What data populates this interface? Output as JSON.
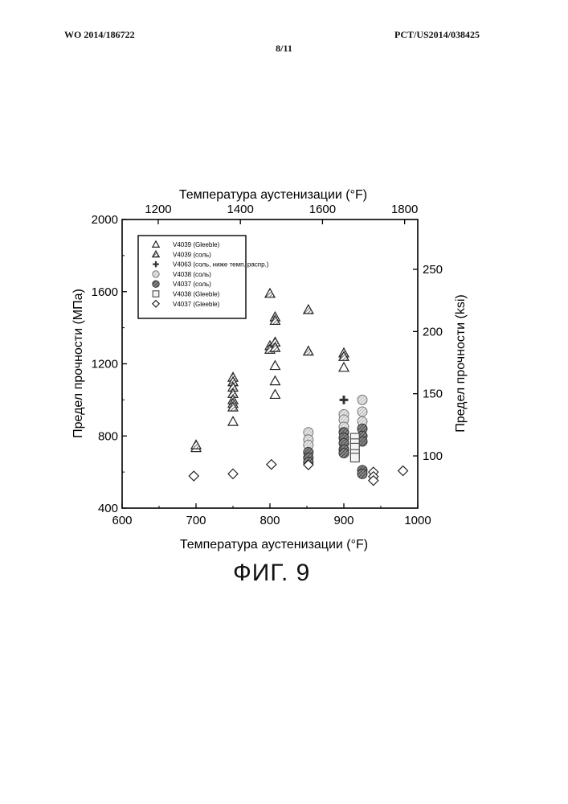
{
  "header": {
    "left": "WO 2014/186722",
    "right": "PCT/US2014/038425",
    "page": "8/11"
  },
  "figure_caption": "ФИГ. 9",
  "chart_data": {
    "type": "scatter",
    "xlabel": "Температура аустенизации (°F)",
    "xlabel_top": "Температура аустенизации (°F)",
    "ylabel": "Предел прочности (МПа)",
    "ylabel_right": "Предел прочности (ksi)",
    "xlim": [
      600,
      1000
    ],
    "ylim": [
      400,
      2000
    ],
    "x_ticks": [
      "600",
      "700",
      "800",
      "900",
      "1000"
    ],
    "y_ticks": [
      "400",
      "800",
      "1200",
      "1600",
      "2000"
    ],
    "x_top_ticks": [
      "1200",
      "1400",
      "1600",
      "1800"
    ],
    "x_top_values": [
      1200,
      1400,
      1600,
      1800
    ],
    "y_right_ticks": [
      "100",
      "150",
      "200",
      "250"
    ],
    "y_right_values": [
      100,
      150,
      200,
      250
    ],
    "legend_position": "top-left",
    "series": [
      {
        "name": "V4039 (Gleeble)",
        "marker": "triangle-open",
        "points": [
          [
            700,
            735
          ],
          [
            750,
            880
          ],
          [
            807,
            1190
          ],
          [
            807,
            1105
          ],
          [
            807,
            1030
          ],
          [
            900,
            1180
          ]
        ]
      },
      {
        "name": "V4039 (соль)",
        "marker": "triangle-hatched",
        "points": [
          [
            700,
            750
          ],
          [
            750,
            1125
          ],
          [
            750,
            1100
          ],
          [
            750,
            1070
          ],
          [
            750,
            1035
          ],
          [
            750,
            1000
          ],
          [
            750,
            980
          ],
          [
            750,
            960
          ],
          [
            800,
            1590
          ],
          [
            800,
            1300
          ],
          [
            800,
            1280
          ],
          [
            807,
            1460
          ],
          [
            807,
            1440
          ],
          [
            807,
            1320
          ],
          [
            807,
            1290
          ],
          [
            852,
            1500
          ],
          [
            852,
            1270
          ],
          [
            900,
            1260
          ],
          [
            900,
            1240
          ]
        ]
      },
      {
        "name": "V4063 (соль, ниже темп. распр.)",
        "marker": "plus-cross",
        "points": [
          [
            900,
            1000
          ]
        ]
      },
      {
        "name": "V4038 (соль)",
        "marker": "circle-light",
        "points": [
          [
            852,
            820
          ],
          [
            852,
            780
          ],
          [
            852,
            750
          ],
          [
            900,
            920
          ],
          [
            900,
            890
          ],
          [
            900,
            850
          ],
          [
            925,
            1000
          ],
          [
            925,
            935
          ],
          [
            925,
            880
          ]
        ]
      },
      {
        "name": "V4037 (соль)",
        "marker": "circle-dark",
        "points": [
          [
            852,
            710
          ],
          [
            852,
            680
          ],
          [
            852,
            655
          ],
          [
            900,
            820
          ],
          [
            900,
            790
          ],
          [
            900,
            760
          ],
          [
            900,
            725
          ],
          [
            900,
            705
          ],
          [
            925,
            840
          ],
          [
            925,
            800
          ],
          [
            925,
            770
          ],
          [
            925,
            610
          ],
          [
            925,
            590
          ]
        ]
      },
      {
        "name": "V4038 (Gleeble)",
        "marker": "square-open",
        "points": [
          [
            915,
            790
          ],
          [
            915,
            760
          ],
          [
            915,
            735
          ],
          [
            915,
            700
          ],
          [
            915,
            680
          ]
        ]
      },
      {
        "name": "V4037 (Gleeble)",
        "marker": "diamond-open",
        "points": [
          [
            697,
            578
          ],
          [
            750,
            590
          ],
          [
            802,
            642
          ],
          [
            852,
            640
          ],
          [
            940,
            600
          ],
          [
            940,
            575
          ],
          [
            940,
            553
          ],
          [
            980,
            607
          ]
        ]
      }
    ]
  }
}
